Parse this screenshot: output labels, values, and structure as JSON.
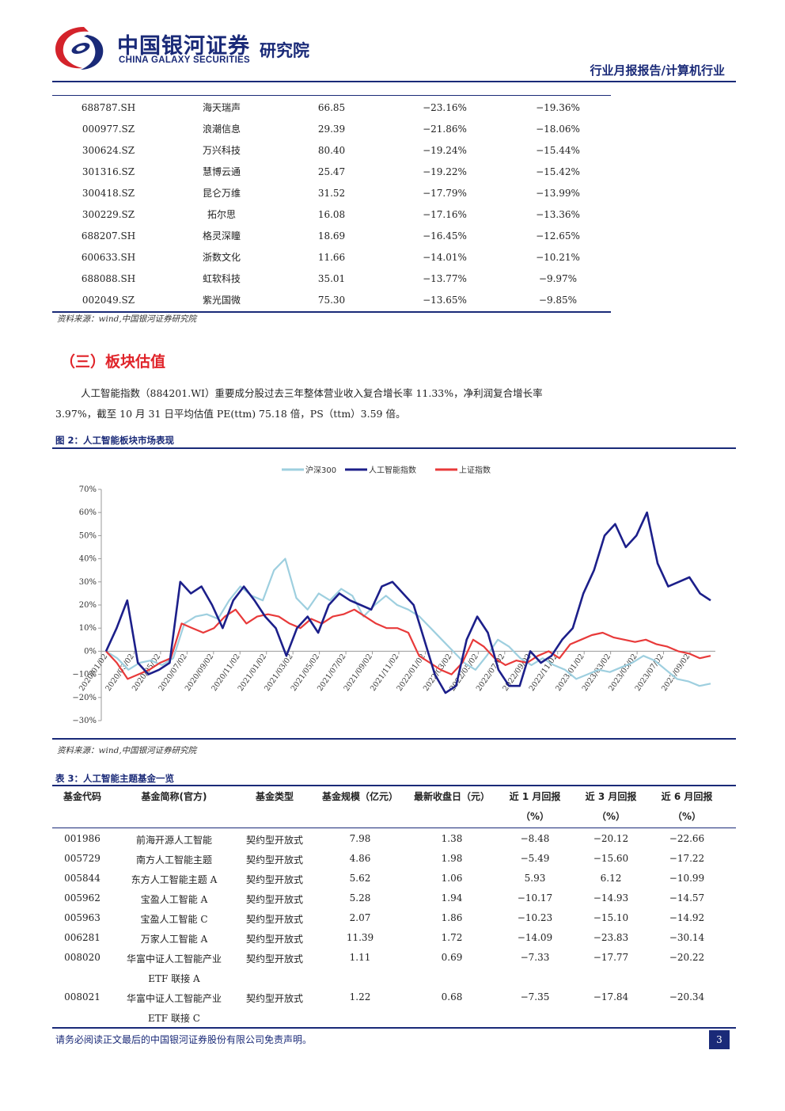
{
  "header": {
    "logo_cn": "中国银河证券",
    "logo_en": "CHINA GALAXY SECURITIES",
    "logo_inst": "研究院",
    "doc_type": "行业月报报告/计算机行业"
  },
  "table1": {
    "rows": [
      [
        "688787.SH",
        "海天瑞声",
        "66.85",
        "−23.16%",
        "−19.36%"
      ],
      [
        "000977.SZ",
        "浪潮信息",
        "29.39",
        "−21.86%",
        "−18.06%"
      ],
      [
        "300624.SZ",
        "万兴科技",
        "80.40",
        "−19.24%",
        "−15.44%"
      ],
      [
        "301316.SZ",
        "慧博云通",
        "25.47",
        "−19.22%",
        "−15.42%"
      ],
      [
        "300418.SZ",
        "昆仑万维",
        "31.52",
        "−17.79%",
        "−13.99%"
      ],
      [
        "300229.SZ",
        "拓尔思",
        "16.08",
        "−17.16%",
        "−13.36%"
      ],
      [
        "688207.SH",
        "格灵深瞳",
        "18.69",
        "−16.45%",
        "−12.65%"
      ],
      [
        "600633.SH",
        "浙数文化",
        "11.66",
        "−14.01%",
        "−10.21%"
      ],
      [
        "688088.SH",
        "虹软科技",
        "35.01",
        "−13.77%",
        "−9.97%"
      ],
      [
        "002049.SZ",
        "紫光国微",
        "75.30",
        "−13.65%",
        "−9.85%"
      ]
    ],
    "source": "资料来源：wind,中国银河证券研究院"
  },
  "section": {
    "title": "（三）板块估值",
    "para_line1": "人工智能指数（884201.WI）重要成分股过去三年整体营业收入复合增长率 11.33%，净利润复合增长率",
    "para_line2": "3.97%，截至 10 月 31 日平均估值 PE(ttm) 75.18 倍，PS（ttm）3.59 倍。"
  },
  "figure": {
    "title": "图 2：人工智能板块市场表现",
    "source": "资料来源：wind,中国银河证券研究院"
  },
  "chart_data": {
    "type": "line",
    "title": "",
    "legend_placement": "top-center",
    "grid": false,
    "ylim": [
      -30,
      70
    ],
    "y_ticks": [
      "70%",
      "60%",
      "50%",
      "40%",
      "30%",
      "20%",
      "10%",
      "0%",
      "−10%",
      "−20%",
      "−30%"
    ],
    "x_ticks": [
      "2020/01/02",
      "2020/03/02",
      "2020/05/02",
      "2020/07/02",
      "2020/09/02",
      "2020/11/02",
      "2021/01/02",
      "2021/03/02",
      "2021/05/02",
      "2021/07/02",
      "2021/09/02",
      "2021/11/02",
      "2022/01/02",
      "2022/03/02",
      "2022/05/02",
      "2022/07/02",
      "2022/09/02",
      "2022/11/02",
      "2023/01/02",
      "2023/03/02",
      "2023/05/02",
      "2023/07/02",
      "2023/09/02"
    ],
    "colors": {
      "hs300": "#9ecfdf",
      "ai": "#1c1f8a",
      "sz": "#e83a3a"
    },
    "series": [
      {
        "name": "沪深300",
        "values": [
          0,
          -3,
          -8,
          -5,
          -4,
          -6,
          -3,
          12,
          15,
          16,
          14,
          22,
          28,
          24,
          22,
          35,
          40,
          23,
          18,
          25,
          22,
          27,
          24,
          15,
          20,
          24,
          20,
          18,
          15,
          10,
          5,
          0,
          -5,
          -8,
          -2,
          5,
          2,
          -3,
          -6,
          -3,
          -6,
          -8,
          -12,
          -10,
          -8,
          -9,
          -7,
          -5,
          -2,
          -4,
          -8,
          -12,
          -13,
          -15,
          -14
        ]
      },
      {
        "name": "人工智能指数",
        "values": [
          0,
          10,
          22,
          -5,
          -10,
          -8,
          -5,
          30,
          25,
          28,
          20,
          10,
          22,
          28,
          22,
          15,
          10,
          -2,
          10,
          15,
          8,
          20,
          25,
          22,
          20,
          18,
          28,
          30,
          25,
          20,
          5,
          -10,
          -18,
          -15,
          5,
          15,
          8,
          -8,
          -15,
          -15,
          0,
          -5,
          -2,
          5,
          10,
          25,
          35,
          50,
          55,
          45,
          50,
          60,
          38,
          28,
          30,
          32,
          25,
          22
        ]
      },
      {
        "name": "上证指数",
        "values": [
          0,
          -5,
          -12,
          -10,
          -8,
          -5,
          -3,
          12,
          10,
          8,
          10,
          15,
          18,
          12,
          15,
          16,
          15,
          12,
          10,
          14,
          12,
          15,
          16,
          18,
          15,
          12,
          10,
          10,
          8,
          -2,
          -5,
          -8,
          -10,
          -5,
          5,
          2,
          -3,
          -6,
          -4,
          -5,
          -2,
          0,
          -3,
          3,
          5,
          7,
          8,
          6,
          5,
          4,
          5,
          3,
          2,
          0,
          -1,
          -3,
          -2
        ]
      }
    ]
  },
  "table3": {
    "title": "表 3：人工智能主题基金一览",
    "headers": {
      "code": "基金代码",
      "name": "基金简称(官方)",
      "type": "基金类型",
      "size": "基金规模（亿元）",
      "nav": "最新收盘日（元）",
      "r1": "近 1 月回报",
      "r3": "近 3 月回报",
      "r6": "近 6 月回报",
      "pct": "（%）"
    },
    "rows": [
      {
        "code": "001986",
        "name1": "前海开源人工智能",
        "name2": "",
        "type": "契约型开放式",
        "size": "7.98",
        "nav": "1.38",
        "r1": "−8.48",
        "r3": "−20.12",
        "r6": "−22.66"
      },
      {
        "code": "005729",
        "name1": "南方人工智能主题",
        "name2": "",
        "type": "契约型开放式",
        "size": "4.86",
        "nav": "1.98",
        "r1": "−5.49",
        "r3": "−15.60",
        "r6": "−17.22"
      },
      {
        "code": "005844",
        "name1": "东方人工智能主题 A",
        "name2": "",
        "type": "契约型开放式",
        "size": "5.62",
        "nav": "1.06",
        "r1": "5.93",
        "r3": "6.12",
        "r6": "−10.99"
      },
      {
        "code": "005962",
        "name1": "宝盈人工智能 A",
        "name2": "",
        "type": "契约型开放式",
        "size": "5.28",
        "nav": "1.94",
        "r1": "−10.17",
        "r3": "−14.93",
        "r6": "−14.57"
      },
      {
        "code": "005963",
        "name1": "宝盈人工智能 C",
        "name2": "",
        "type": "契约型开放式",
        "size": "2.07",
        "nav": "1.86",
        "r1": "−10.23",
        "r3": "−15.10",
        "r6": "−14.92"
      },
      {
        "code": "006281",
        "name1": "万家人工智能 A",
        "name2": "",
        "type": "契约型开放式",
        "size": "11.39",
        "nav": "1.72",
        "r1": "−14.09",
        "r3": "−23.83",
        "r6": "−30.14"
      },
      {
        "code": "008020",
        "name1": "华富中证人工智能产业",
        "name2": "ETF 联接 A",
        "type": "契约型开放式",
        "size": "1.11",
        "nav": "0.69",
        "r1": "−7.33",
        "r3": "−17.77",
        "r6": "−20.22"
      },
      {
        "code": "008021",
        "name1": "华富中证人工智能产业",
        "name2": "ETF 联接 C",
        "type": "契约型开放式",
        "size": "1.22",
        "nav": "0.68",
        "r1": "−7.35",
        "r3": "−17.84",
        "r6": "−20.34"
      }
    ]
  },
  "footer": {
    "disclaimer": "请务必阅读正文最后的中国银河证券股份有限公司免责声明。",
    "page": "3"
  }
}
